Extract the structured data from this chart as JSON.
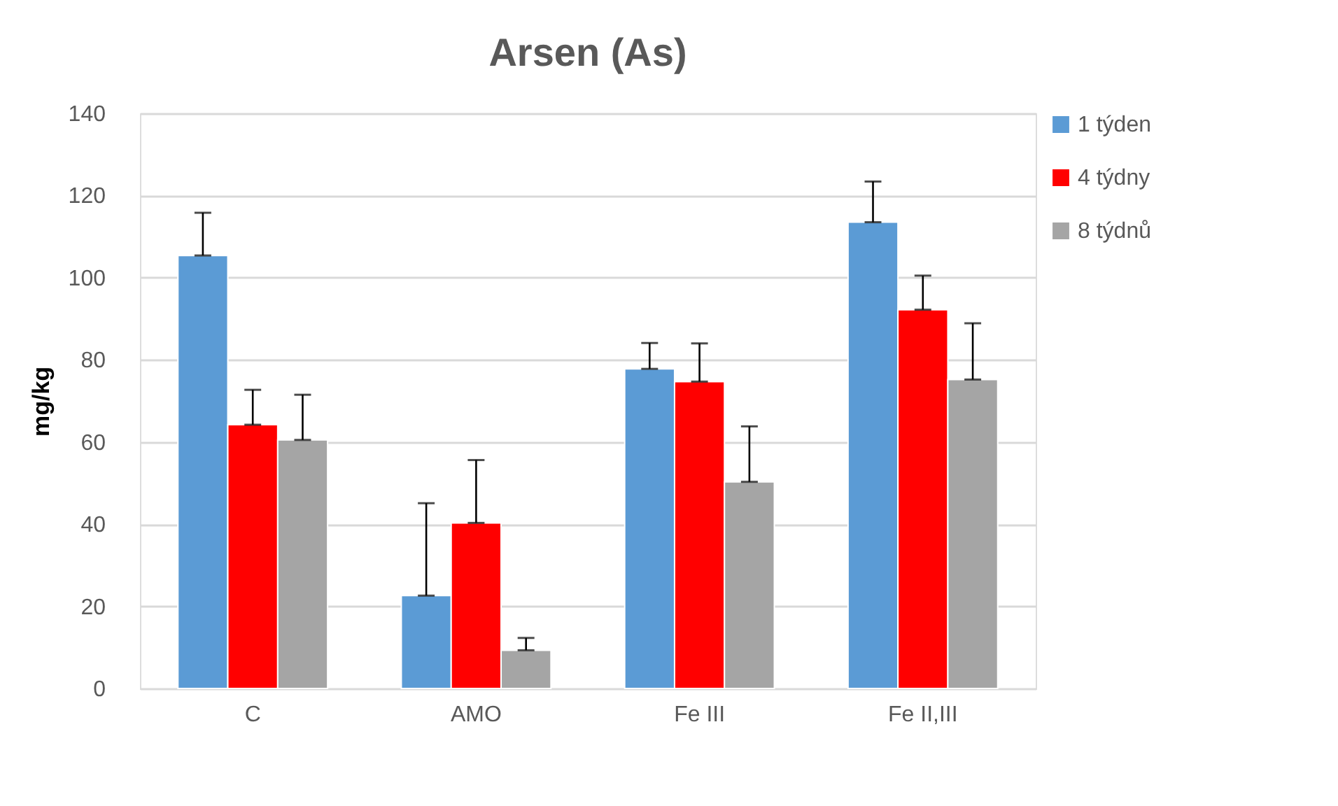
{
  "chart_data": {
    "type": "bar",
    "title": "Arsen (As)",
    "ylabel": "mg/kg",
    "categories": [
      "C",
      "AMO",
      "Fe III",
      "Fe II,III"
    ],
    "series": [
      {
        "name": "1 týden",
        "color": "#5b9bd5",
        "values": [
          105.4,
          22.6,
          77.8,
          113.5
        ],
        "errors": [
          [
            105.4,
            115.8
          ],
          [
            22.6,
            45.1
          ],
          [
            77.8,
            84.1
          ],
          [
            113.5,
            123.4
          ]
        ]
      },
      {
        "name": "4 týdny",
        "color": "#ff0000",
        "values": [
          64.2,
          40.3,
          74.7,
          92.2
        ],
        "errors": [
          [
            64.2,
            72.7
          ],
          [
            40.3,
            55.6
          ],
          [
            74.7,
            84.0
          ],
          [
            92.2,
            100.5
          ]
        ]
      },
      {
        "name": "8 týdnů",
        "color": "#a5a5a5",
        "values": [
          60.5,
          9.3,
          50.3,
          75.2
        ],
        "errors": [
          [
            60.5,
            71.5
          ],
          [
            9.3,
            12.3
          ],
          [
            50.3,
            63.8
          ],
          [
            75.2,
            88.9
          ]
        ]
      }
    ],
    "ylim": [
      0,
      140
    ],
    "yticks": [
      0,
      20,
      40,
      60,
      80,
      100,
      120,
      140
    ],
    "grid": "y",
    "legend": "right"
  }
}
